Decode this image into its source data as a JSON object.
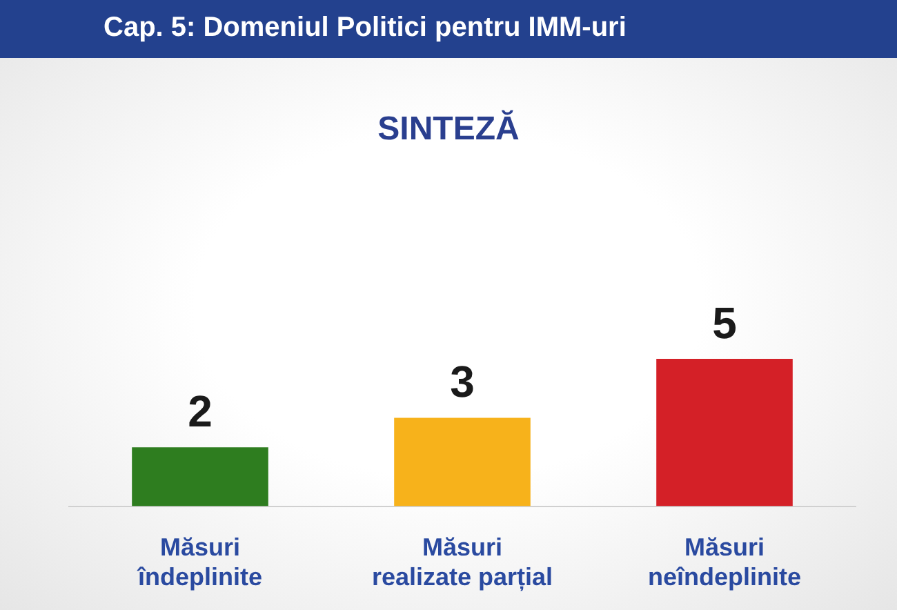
{
  "chart_data": {
    "type": "bar",
    "title": "Cap. 5: Domeniul Politici pentru IMM-uri",
    "subtitle": "SINTEZĂ",
    "categories": [
      "Măsuri îndeplinite",
      "Măsuri realizate parțial",
      "Măsuri neîndeplinite"
    ],
    "values": [
      2,
      3,
      5
    ],
    "colors": [
      "#2e7d1f",
      "#f7b21b",
      "#d42027"
    ],
    "data_labels": true
  }
}
